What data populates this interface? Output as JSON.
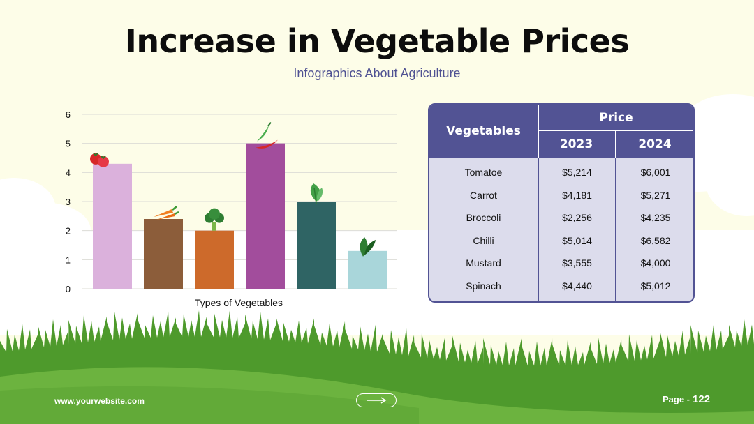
{
  "title": "Increase in Vegetable Prices",
  "subtitle": "Infographics About Agriculture",
  "colors": {
    "accent": "#525394",
    "grass_dark": "#4e9a2c",
    "grass_light": "#6cb33f",
    "background": "#fdfde8"
  },
  "chart_data": {
    "type": "bar",
    "categories": [
      "Tomatoe",
      "Carrot",
      "Broccoli",
      "Chilli",
      "Mustard",
      "Spinach"
    ],
    "values": [
      4.3,
      2.4,
      2.0,
      5.0,
      3.0,
      1.3
    ],
    "bar_colors": [
      "#dbb1dc",
      "#8c5d3a",
      "#cd6a2b",
      "#a24d9c",
      "#2f6464",
      "#a9d6da"
    ],
    "icons": [
      "tomato-icon",
      "carrot-icon",
      "broccoli-icon",
      "chilli-icon",
      "mustard-leaf-icon",
      "spinach-icon"
    ],
    "title": "",
    "xlabel": "Types of Vegetables",
    "ylabel": "",
    "ylim": [
      0,
      6
    ],
    "yticks": [
      0,
      1,
      2,
      3,
      4,
      5,
      6
    ],
    "grid": true,
    "legend": "none"
  },
  "table": {
    "header_veg": "Vegetables",
    "header_price": "Price",
    "years": [
      "2023",
      "2024"
    ],
    "rows": [
      {
        "name": "Tomatoe",
        "p2023": "$5,214",
        "p2024": "$6,001"
      },
      {
        "name": "Carrot",
        "p2023": "$4,181",
        "p2024": "$5,271"
      },
      {
        "name": "Broccoli",
        "p2023": "$2,256",
        "p2024": "$4,235"
      },
      {
        "name": "Chilli",
        "p2023": "$5,014",
        "p2024": "$6,582"
      },
      {
        "name": "Mustard",
        "p2023": "$3,555",
        "p2024": "$4,000"
      },
      {
        "name": "Spinach",
        "p2023": "$4,440",
        "p2024": "$5,012"
      }
    ]
  },
  "footer": {
    "website": "www.yourwebsite.com",
    "page_label": "Page -",
    "page_number": "122",
    "next_icon": "arrow-right-icon"
  }
}
